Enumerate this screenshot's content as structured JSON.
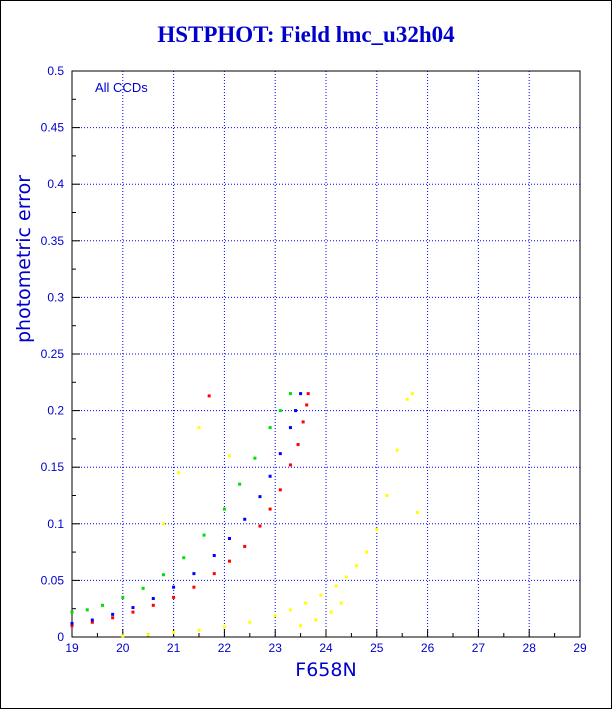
{
  "chart_data": {
    "type": "scatter",
    "title": "HSTPHOT: Field lmc_u32h04",
    "xlabel": "F658N",
    "ylabel": "photometric error",
    "annotation": "All CCDs",
    "xlim": [
      19,
      29
    ],
    "ylim": [
      0,
      0.5
    ],
    "x_ticks": [
      "19",
      "20",
      "21",
      "22",
      "23",
      "24",
      "25",
      "26",
      "27",
      "28",
      "29"
    ],
    "y_ticks": [
      "0",
      "0.05",
      "0.1",
      "0.15",
      "0.2",
      "0.25",
      "0.3",
      "0.35",
      "0.4",
      "0.45",
      "0.5"
    ],
    "grid": true,
    "colors": {
      "text": "#0000cc",
      "grid": "#0000ff",
      "axis": "#000000",
      "chip_red": "#ff0000",
      "chip_green": "#00dd00",
      "chip_blue": "#0000ff",
      "chip_yellow": "#ffff00"
    },
    "series": [
      {
        "color": "#ff0000",
        "x": [
          19.0,
          19.4,
          19.8,
          20.2,
          20.6,
          21.0,
          21.4,
          21.8,
          22.1,
          22.4,
          22.7,
          22.9,
          23.1,
          23.3,
          23.45,
          23.55,
          23.62,
          23.65,
          21.7
        ],
        "y": [
          0.01,
          0.013,
          0.017,
          0.022,
          0.028,
          0.035,
          0.044,
          0.056,
          0.067,
          0.08,
          0.098,
          0.113,
          0.13,
          0.152,
          0.17,
          0.19,
          0.205,
          0.215,
          0.213
        ]
      },
      {
        "color": "#0000ff",
        "x": [
          19.0,
          19.4,
          19.8,
          20.2,
          20.6,
          21.0,
          21.4,
          21.8,
          22.1,
          22.4,
          22.7,
          22.9,
          23.1,
          23.3,
          23.4,
          23.5
        ],
        "y": [
          0.012,
          0.015,
          0.02,
          0.026,
          0.034,
          0.044,
          0.056,
          0.072,
          0.087,
          0.104,
          0.124,
          0.142,
          0.162,
          0.185,
          0.2,
          0.215
        ]
      },
      {
        "color": "#00dd00",
        "x": [
          19.0,
          19.3,
          19.6,
          20.0,
          20.4,
          20.8,
          21.2,
          21.6,
          22.0,
          22.3,
          22.6,
          22.9,
          23.1,
          23.3
        ],
        "y": [
          0.022,
          0.024,
          0.028,
          0.035,
          0.043,
          0.055,
          0.07,
          0.09,
          0.113,
          0.135,
          0.158,
          0.185,
          0.2,
          0.215
        ]
      },
      {
        "color": "#ffff00",
        "x": [
          20.0,
          20.5,
          21.0,
          21.5,
          22.0,
          22.5,
          23.0,
          23.3,
          23.6,
          23.9,
          24.2,
          24.4,
          24.6,
          24.8,
          25.0,
          25.2,
          25.4,
          25.6,
          25.7,
          25.8,
          20.8,
          21.1,
          21.5,
          22.1,
          23.5,
          23.8,
          24.1,
          24.3
        ],
        "y": [
          0.001,
          0.002,
          0.004,
          0.006,
          0.009,
          0.013,
          0.019,
          0.024,
          0.03,
          0.037,
          0.045,
          0.053,
          0.063,
          0.075,
          0.095,
          0.125,
          0.165,
          0.21,
          0.215,
          0.11,
          0.1,
          0.145,
          0.185,
          0.16,
          0.01,
          0.015,
          0.022,
          0.03
        ]
      }
    ]
  }
}
